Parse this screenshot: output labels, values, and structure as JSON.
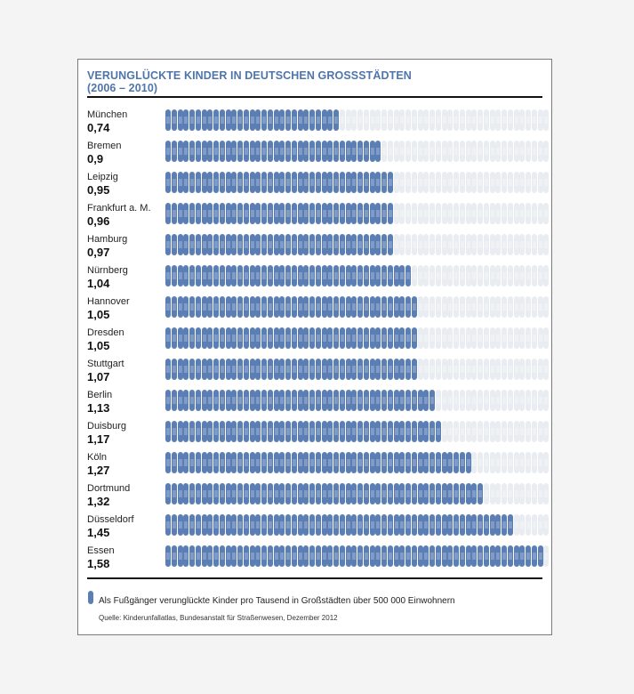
{
  "chart_data": {
    "type": "bar",
    "title": "VERUNGLÜCKTE KINDER IN DEUTSCHEN GROSSSTÄDTEN",
    "subtitle": "(2006 – 2010)",
    "categories": [
      "München",
      "Bremen",
      "Leipzig",
      "Frankfurt a. M.",
      "Hamburg",
      "Nürnberg",
      "Hannover",
      "Dresden",
      "Stuttgart",
      "Berlin",
      "Duisburg",
      "Köln",
      "Dortmund",
      "Düsseldorf",
      "Essen"
    ],
    "value_labels": [
      "0,74",
      "0,9",
      "0,95",
      "0,96",
      "0,97",
      "1,04",
      "1,05",
      "1,05",
      "1,07",
      "1,13",
      "1,17",
      "1,27",
      "1,32",
      "1,45",
      "1,58"
    ],
    "values": [
      0.74,
      0.9,
      0.95,
      0.96,
      0.97,
      1.04,
      1.05,
      1.05,
      1.07,
      1.13,
      1.17,
      1.27,
      1.32,
      1.45,
      1.58
    ],
    "filled_icons": [
      29,
      36,
      38,
      38,
      38,
      41,
      42,
      42,
      42,
      45,
      46,
      51,
      53,
      58,
      63
    ],
    "total_icons": 64,
    "legend": "Als Fußgänger verunglückte Kinder pro Tausend in Großstädten über 500 000 Einwohnern",
    "source": "Quelle: Kinderunfallatlas, Bundesanstalt für Straßenwesen, Dezember 2012",
    "colors": {
      "filled": "#5b7fb5",
      "empty": "#e9edf2",
      "title": "#4f75aa"
    }
  }
}
